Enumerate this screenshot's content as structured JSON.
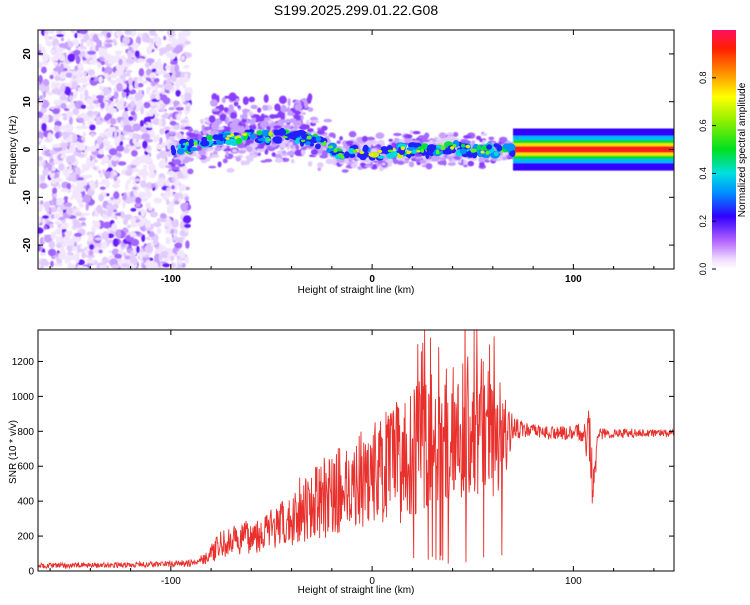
{
  "title": "S199.2025.299.01.22.G08",
  "chart_data": [
    {
      "type": "heatmap",
      "xlabel": "Height of straight line (km)",
      "ylabel": "Frequency (Hz)",
      "xlim": [
        -166,
        150
      ],
      "ylim": [
        -25,
        25
      ],
      "xticks": [
        -100,
        0,
        100
      ],
      "yticks": [
        -20,
        -10,
        0,
        10,
        20
      ],
      "colorbar": {
        "label": "Normalized spectral amplitude",
        "range": [
          0,
          1
        ],
        "ticks": [
          "0.0",
          "0.2",
          "0.4",
          "0.6",
          "0.8"
        ]
      },
      "ridge": {
        "x": [
          -100,
          -90,
          -80,
          -70,
          -60,
          -50,
          -40,
          -30,
          -20,
          -15,
          -10,
          0,
          10,
          20,
          30,
          40,
          50,
          60,
          70,
          80,
          90,
          100,
          110,
          120,
          130,
          140,
          150
        ],
        "freq_hz": [
          0,
          1,
          2,
          2.5,
          3,
          2.5,
          2.8,
          2,
          0.5,
          -1.5,
          -0.5,
          -1,
          -0.5,
          0,
          -0.2,
          0.2,
          0,
          -0.2,
          0,
          0,
          0,
          0,
          0,
          0,
          0,
          0,
          0
        ]
      }
    },
    {
      "type": "line",
      "xlabel": "Height of straight line (km)",
      "ylabel": "SNR (10 * v/v)",
      "xlim": [
        -166,
        150
      ],
      "ylim": [
        0,
        1380
      ],
      "xticks": [
        -100,
        0,
        100
      ],
      "yticks": [
        0,
        200,
        400,
        600,
        800,
        1000,
        1200
      ],
      "series": [
        {
          "name": "SNR",
          "color": "#e8302c",
          "envelope_x": [
            -166,
            -120,
            -90,
            -82,
            -75,
            -60,
            -40,
            -38,
            -30,
            -20,
            -10,
            0,
            10,
            20,
            30,
            40,
            50,
            55,
            60,
            65,
            70,
            75,
            80,
            90,
            100,
            105,
            108,
            110,
            112,
            120,
            130,
            150
          ],
          "envelope_y": [
            30,
            35,
            45,
            80,
            150,
            200,
            280,
            350,
            380,
            440,
            500,
            560,
            600,
            690,
            760,
            800,
            840,
            820,
            800,
            780,
            820,
            810,
            800,
            790,
            790,
            800,
            760,
            450,
            780,
            790,
            790,
            790
          ],
          "amplitude": [
            15,
            15,
            20,
            40,
            80,
            100,
            150,
            200,
            200,
            250,
            260,
            300,
            350,
            380,
            380,
            400,
            420,
            400,
            380,
            300,
            60,
            50,
            40,
            40,
            40,
            60,
            200,
            150,
            40,
            30,
            25,
            20
          ]
        }
      ]
    }
  ]
}
